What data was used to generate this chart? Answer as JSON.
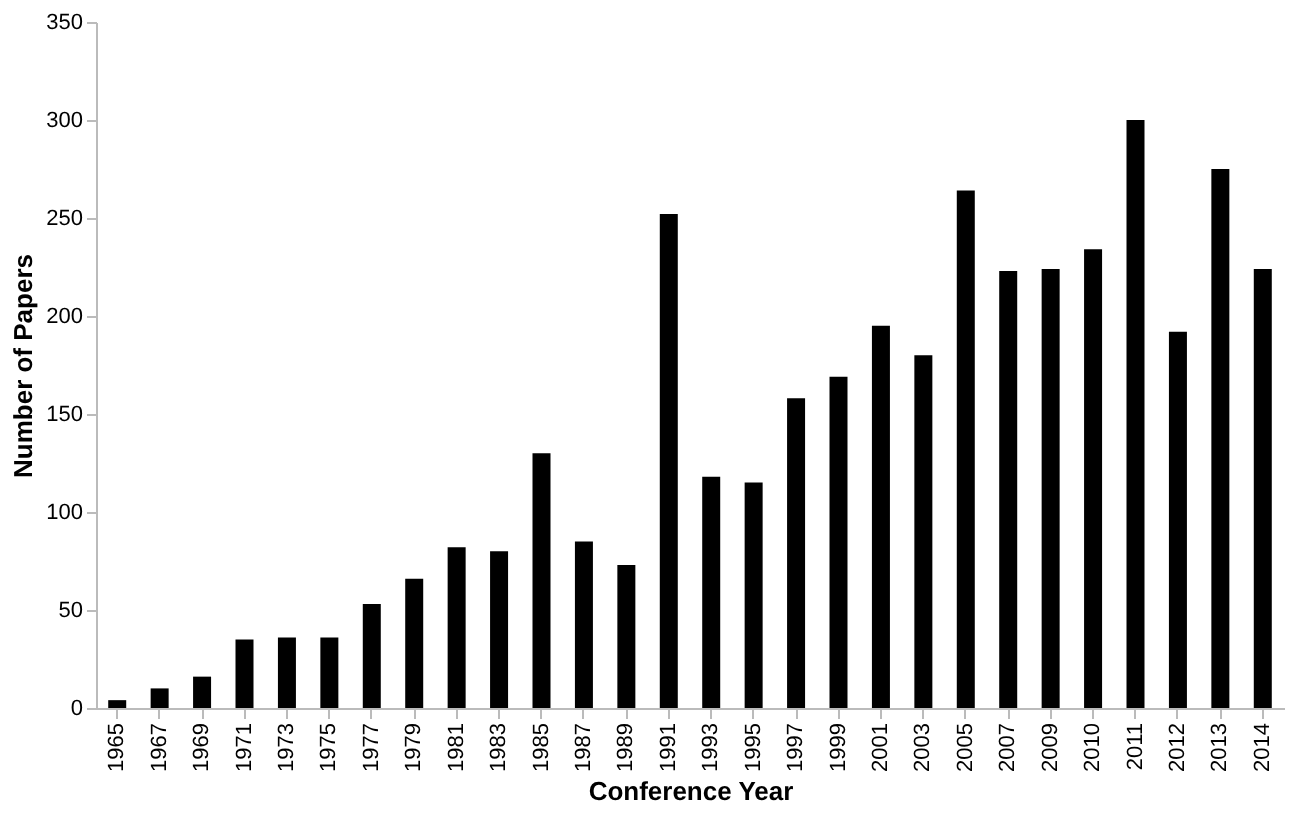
{
  "chart_data": {
    "type": "bar",
    "xlabel": "Conference Year",
    "ylabel": "Number of Papers",
    "categories": [
      "1965",
      "1967",
      "1969",
      "1971",
      "1973",
      "1975",
      "1977",
      "1979",
      "1981",
      "1983",
      "1985",
      "1987",
      "1989",
      "1991",
      "1993",
      "1995",
      "1997",
      "1999",
      "2001",
      "2003",
      "2005",
      "2007",
      "2009",
      "2010",
      "2011",
      "2012",
      "2013",
      "2014"
    ],
    "values": [
      4,
      10,
      16,
      35,
      36,
      36,
      53,
      66,
      82,
      80,
      130,
      85,
      73,
      252,
      118,
      115,
      158,
      169,
      195,
      180,
      264,
      223,
      224,
      234,
      300,
      192,
      275,
      224
    ],
    "color": "#000000",
    "ylim": [
      0,
      350
    ],
    "yticks": [
      0,
      50,
      100,
      150,
      200,
      250,
      300,
      350
    ],
    "grid": false
  }
}
